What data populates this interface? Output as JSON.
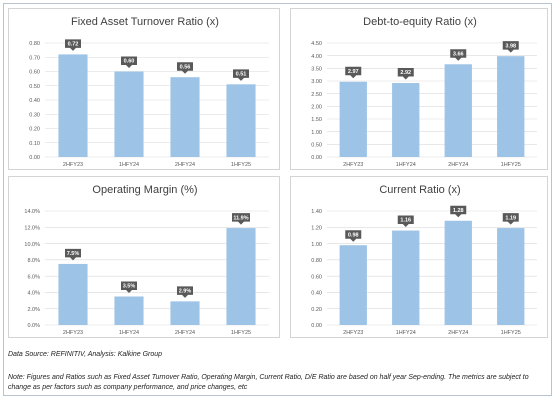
{
  "source_text": "Data Source: REFINITIV, Analysis: Kalkine Group",
  "note_text": "Note: Figures and Ratios such as Fixed Asset Turnover Ratio, Operating Margin, Current Ratio, D/E Ratio are based on half year Sep-ending. The metrics are subject to change as per factors such as company performance, and price changes, etc",
  "colors": {
    "bar": "#9dc3e6",
    "label_box": "#595959",
    "grid": "#d9d9d9",
    "axis_text": "#595959"
  },
  "chart_data": [
    {
      "type": "bar",
      "title": "Fixed Asset Turnover Ratio (x)",
      "categories": [
        "2HFY23",
        "1HFY24",
        "2HFY24",
        "1HFY25"
      ],
      "values": [
        0.72,
        0.6,
        0.56,
        0.51
      ],
      "data_labels": [
        "0.72",
        "0.60",
        "0.56",
        "0.51"
      ],
      "ylim": [
        0,
        0.8
      ],
      "yticks": [
        "0.00",
        "0.10",
        "0.20",
        "0.30",
        "0.40",
        "0.50",
        "0.60",
        "0.70",
        "0.80"
      ],
      "grid": true
    },
    {
      "type": "bar",
      "title": "Debt-to-equity Ratio (x)",
      "categories": [
        "2HFY23",
        "1HFY24",
        "2HFY24",
        "1HFY25"
      ],
      "values": [
        2.97,
        2.92,
        3.66,
        3.98
      ],
      "data_labels": [
        "2.97",
        "2.92",
        "3.66",
        "3.98"
      ],
      "ylim": [
        0,
        4.5
      ],
      "yticks": [
        "0.00",
        "0.50",
        "1.00",
        "1.50",
        "2.00",
        "2.50",
        "3.00",
        "3.50",
        "4.00",
        "4.50"
      ],
      "grid": true
    },
    {
      "type": "bar",
      "title": "Operating Margin (%)",
      "categories": [
        "2HFY23",
        "1HFY24",
        "2HFY24",
        "1HFY25"
      ],
      "values": [
        7.5,
        3.5,
        2.9,
        11.9
      ],
      "data_labels": [
        "7.5%",
        "3.5%",
        "2.9%",
        "11.9%"
      ],
      "ylim": [
        0,
        14
      ],
      "yticks": [
        "0.0%",
        "2.0%",
        "4.0%",
        "6.0%",
        "8.0%",
        "10.0%",
        "12.0%",
        "14.0%"
      ],
      "grid": true
    },
    {
      "type": "bar",
      "title": "Current Ratio (x)",
      "categories": [
        "2HFY23",
        "1HFY24",
        "2HFY24",
        "1HFY25"
      ],
      "values": [
        0.98,
        1.16,
        1.28,
        1.19
      ],
      "data_labels": [
        "0.98",
        "1.16",
        "1.28",
        "1.19"
      ],
      "ylim": [
        0,
        1.4
      ],
      "yticks": [
        "0.00",
        "0.20",
        "0.40",
        "0.60",
        "0.80",
        "1.00",
        "1.20",
        "1.40"
      ],
      "grid": true
    }
  ]
}
